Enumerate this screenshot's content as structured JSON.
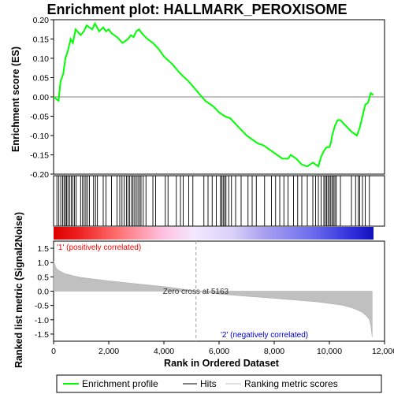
{
  "chart_data": {
    "type": "line",
    "title": "Enrichment plot: HALLMARK_PEROXISOME",
    "es_panel": {
      "ylabel": "Enrichment score (ES)",
      "ylim": [
        -0.2,
        0.2
      ],
      "yticks": [
        "0.20",
        "0.15",
        "0.10",
        "0.05",
        "0.00",
        "-0.05",
        "-0.10",
        "-0.15",
        "-0.20"
      ],
      "ytick_values": [
        0.2,
        0.15,
        0.1,
        0.05,
        0.0,
        -0.05,
        -0.1,
        -0.15,
        -0.2
      ],
      "line_color": "#00ff00",
      "series": [
        {
          "name": "Enrichment profile",
          "x": [
            0,
            180,
            250,
            350,
            430,
            520,
            620,
            700,
            800,
            980,
            1100,
            1200,
            1400,
            1500,
            1650,
            1800,
            1900,
            2000,
            2100,
            2300,
            2500,
            2600,
            2700,
            2800,
            2900,
            3000,
            3100,
            3200,
            3400,
            3600,
            3800,
            4000,
            4300,
            4600,
            4900,
            5200,
            5500,
            5800,
            6000,
            6100,
            6200,
            6400,
            6600,
            6800,
            7000,
            7200,
            7400,
            7600,
            7700,
            7900,
            8100,
            8300,
            8500,
            8600,
            8800,
            9000,
            9200,
            9300,
            9400,
            9600,
            9700,
            9800,
            9900,
            10000,
            10050,
            10100,
            10200,
            10300,
            10400,
            10600,
            10800,
            11000,
            11100,
            11150,
            11200,
            11300,
            11400,
            11500,
            11600
          ],
          "y": [
            0.0,
            -0.01,
            0.04,
            0.06,
            0.1,
            0.12,
            0.15,
            0.14,
            0.175,
            0.16,
            0.17,
            0.185,
            0.175,
            0.19,
            0.17,
            0.18,
            0.17,
            0.175,
            0.165,
            0.155,
            0.14,
            0.145,
            0.15,
            0.16,
            0.155,
            0.17,
            0.175,
            0.165,
            0.15,
            0.14,
            0.125,
            0.105,
            0.085,
            0.06,
            0.04,
            0.015,
            -0.01,
            -0.025,
            -0.04,
            -0.045,
            -0.05,
            -0.055,
            -0.07,
            -0.085,
            -0.1,
            -0.11,
            -0.12,
            -0.125,
            -0.13,
            -0.14,
            -0.15,
            -0.16,
            -0.16,
            -0.15,
            -0.16,
            -0.175,
            -0.18,
            -0.175,
            -0.17,
            -0.18,
            -0.155,
            -0.14,
            -0.13,
            -0.13,
            -0.12,
            -0.1,
            -0.075,
            -0.06,
            -0.06,
            -0.075,
            -0.09,
            -0.1,
            -0.08,
            -0.065,
            -0.05,
            -0.02,
            -0.015,
            0.01,
            0.005
          ]
        }
      ]
    },
    "hits": [
      120,
      190,
      260,
      330,
      380,
      430,
      470,
      520,
      580,
      640,
      700,
      760,
      820,
      980,
      1050,
      1110,
      1170,
      1230,
      1300,
      1450,
      1520,
      1590,
      1800,
      1900,
      2100,
      2300,
      2400,
      2480,
      2560,
      2640,
      2700,
      2760,
      2830,
      2880,
      2940,
      3000,
      3060,
      3120,
      3170,
      3250,
      3350,
      3600,
      3700,
      4050,
      4150,
      4450,
      4600,
      4700,
      4900,
      5050,
      5450,
      5600,
      5750,
      5900,
      6050,
      6100,
      6150,
      6200,
      6250,
      6350,
      6450,
      6600,
      6800,
      7050,
      7200,
      7350,
      7650,
      7900,
      8050,
      8200,
      8350,
      8500,
      8700,
      8850,
      9000,
      9200,
      9400,
      9500,
      9600,
      9700,
      9800,
      9850,
      9900,
      9950,
      10000,
      10050,
      10100,
      10150,
      10200,
      10250,
      10400,
      10800,
      10950,
      11050,
      11100,
      11200,
      11300,
      11450
    ],
    "rank_panel": {
      "ylabel": "Ranked list metric (Signal2Noise)",
      "ylim": [
        -1.75,
        1.75
      ],
      "yticks": [
        "1.5",
        "1.0",
        "0.5",
        "0.0",
        "-0.5",
        "-1.0",
        "-1.5"
      ],
      "ytick_values": [
        1.5,
        1.0,
        0.5,
        0.0,
        -0.5,
        -1.0,
        -1.5
      ],
      "fill_color": "#c0c0c0",
      "profile_x": [
        0,
        40,
        100,
        200,
        400,
        700,
        1000,
        1500,
        2000,
        2500,
        3000,
        3500,
        4000,
        4500,
        5163,
        6000,
        7000,
        8000,
        9000,
        9500,
        10000,
        10500,
        10800,
        11000,
        11200,
        11350,
        11450,
        11500,
        11550
      ],
      "profile_y": [
        1.05,
        0.95,
        0.8,
        0.72,
        0.62,
        0.54,
        0.48,
        0.42,
        0.36,
        0.31,
        0.26,
        0.21,
        0.16,
        0.1,
        0.0,
        -0.1,
        -0.18,
        -0.25,
        -0.33,
        -0.37,
        -0.43,
        -0.5,
        -0.58,
        -0.65,
        -0.75,
        -0.88,
        -1.0,
        -1.2,
        -1.6
      ],
      "zero_cross_label": "Zero cross at 5163",
      "zero_cross": 5163,
      "pos_label": "'1' (positively correlated)",
      "neg_label": "'2' (negatively correlated)",
      "pos_color": "#ff0000",
      "neg_color": "#0000ff"
    },
    "xlabel": "Rank in Dataset",
    "xlabel_full": "Rank in Ordered Dataset",
    "xlim": [
      0,
      12000
    ],
    "n_genes": 11600,
    "xticks": [
      "0",
      "2,000",
      "4,000",
      "6,000",
      "8,000",
      "10,000",
      "12,000"
    ],
    "xtick_values": [
      0,
      2000,
      4000,
      6000,
      8000,
      10000,
      12000
    ],
    "legend": {
      "items": [
        {
          "label": "Enrichment profile",
          "color": "#00ff00"
        },
        {
          "label": "Hits",
          "color": "#000000"
        },
        {
          "label": "Ranking metric scores",
          "color": "#c0c0c0"
        }
      ]
    }
  }
}
